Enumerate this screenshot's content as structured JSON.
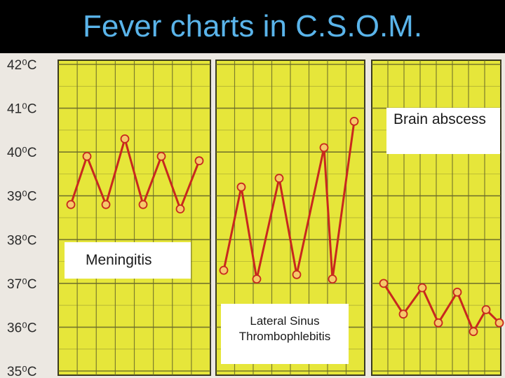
{
  "title": "Fever charts in C.S.O.M.",
  "labels": {
    "brain": "Brain abscess",
    "meningitis": "Meningitis",
    "lateral": "Lateral Sinus Thrombophlebitis"
  },
  "colors": {
    "panel": "#e6e63a",
    "grid": "#6b6b2a",
    "line": "#c8281e",
    "marker_fill": "#f6c96a",
    "marker_stroke": "#c8281e",
    "title": "#5ab4ea"
  },
  "chart_data": [
    {
      "type": "line",
      "name": "Meningitis",
      "ylim": [
        35,
        42
      ],
      "yticks": [
        "42⁰C",
        "41⁰C",
        "40⁰C",
        "39⁰C",
        "38⁰C",
        "37⁰C",
        "36⁰C",
        "35⁰C"
      ],
      "values": [
        38.8,
        39.9,
        38.8,
        40.3,
        38.8,
        39.9,
        38.7,
        39.8
      ]
    },
    {
      "type": "line",
      "name": "Lateral Sinus Thrombophlebitis",
      "ylim": [
        35,
        42
      ],
      "values": [
        37.3,
        39.2,
        37.1,
        39.4,
        37.2,
        40.1,
        37.1,
        40.7
      ]
    },
    {
      "type": "line",
      "name": "Brain abscess",
      "ylim": [
        35,
        42
      ],
      "values": [
        37.0,
        36.3,
        36.9,
        36.1,
        36.8,
        35.9,
        36.4,
        36.1
      ]
    }
  ]
}
